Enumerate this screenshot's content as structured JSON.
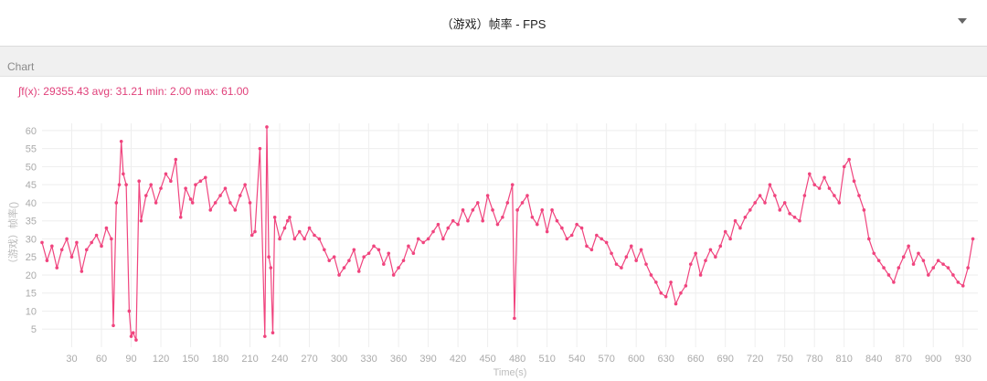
{
  "header": {
    "title": "（游戏）帧率 - FPS",
    "dropdown_icon": "chevron-down-icon"
  },
  "section": {
    "label": "Chart"
  },
  "stats": {
    "text": "∫f(x): 29355.43 avg: 31.21 min: 2.00 max: 61.00"
  },
  "colors": {
    "series": "#f0447e",
    "grid": "#eeeeee",
    "stats": "#e0407a"
  },
  "chart_data": {
    "type": "line",
    "xlabel": "Time(s)",
    "ylabel": "（游戏）帧率()",
    "xlim": [
      0,
      945
    ],
    "ylim": [
      0,
      62
    ],
    "x_ticks": [
      30,
      60,
      90,
      120,
      150,
      180,
      210,
      240,
      270,
      300,
      330,
      360,
      390,
      420,
      450,
      480,
      510,
      540,
      570,
      600,
      630,
      660,
      690,
      720,
      750,
      780,
      810,
      840,
      870,
      900,
      930
    ],
    "y_ticks": [
      5,
      10,
      15,
      20,
      25,
      30,
      35,
      40,
      45,
      50,
      55,
      60
    ],
    "grid": true,
    "series": [
      {
        "x": [
          0,
          5,
          10,
          15,
          20,
          25,
          30,
          35,
          40,
          45,
          50,
          55,
          60,
          65,
          70,
          72,
          75,
          78,
          80,
          82,
          85,
          88,
          90,
          92,
          95,
          98,
          100,
          105,
          110,
          115,
          120,
          125,
          130,
          135,
          140,
          145,
          150,
          152,
          155,
          160,
          165,
          170,
          175,
          180,
          185,
          190,
          195,
          200,
          205,
          210,
          212,
          215,
          220,
          225,
          227,
          229,
          231,
          233,
          235,
          240,
          245,
          248,
          250,
          255,
          260,
          265,
          270,
          275,
          280,
          285,
          290,
          295,
          300,
          305,
          310,
          315,
          320,
          325,
          330,
          335,
          340,
          345,
          350,
          355,
          360,
          365,
          370,
          375,
          380,
          385,
          390,
          395,
          400,
          405,
          410,
          415,
          420,
          425,
          430,
          435,
          440,
          445,
          450,
          455,
          460,
          465,
          470,
          475,
          477,
          480,
          485,
          490,
          495,
          500,
          505,
          510,
          515,
          520,
          525,
          530,
          535,
          540,
          545,
          550,
          555,
          560,
          565,
          570,
          575,
          580,
          585,
          590,
          595,
          600,
          605,
          610,
          615,
          620,
          625,
          630,
          635,
          640,
          645,
          650,
          655,
          660,
          665,
          670,
          675,
          680,
          685,
          690,
          695,
          700,
          705,
          710,
          715,
          720,
          725,
          730,
          735,
          740,
          745,
          750,
          755,
          760,
          765,
          770,
          775,
          780,
          785,
          790,
          795,
          800,
          805,
          810,
          815,
          820,
          825,
          830,
          835,
          840,
          845,
          850,
          855,
          860,
          865,
          870,
          875,
          880,
          885,
          890,
          895,
          900,
          905,
          910,
          915,
          920,
          925,
          930,
          935,
          940
        ],
        "y": [
          29,
          24,
          28,
          22,
          27,
          30,
          25,
          29,
          21,
          27,
          29,
          31,
          28,
          33,
          30,
          6,
          40,
          45,
          57,
          48,
          45,
          10,
          3,
          4,
          2,
          46,
          35,
          42,
          45,
          40,
          44,
          48,
          46,
          52,
          36,
          44,
          41,
          40,
          45,
          46,
          47,
          38,
          40,
          42,
          44,
          40,
          38,
          42,
          45,
          40,
          31,
          32,
          55,
          3,
          61,
          25,
          22,
          4,
          36,
          30,
          33,
          35,
          36,
          30,
          32,
          30,
          33,
          31,
          30,
          27,
          24,
          25,
          20,
          22,
          24,
          27,
          21,
          25,
          26,
          28,
          27,
          23,
          26,
          20,
          22,
          24,
          28,
          26,
          30,
          29,
          30,
          32,
          34,
          30,
          33,
          35,
          34,
          38,
          35,
          38,
          40,
          35,
          42,
          38,
          34,
          36,
          40,
          45,
          8,
          38,
          40,
          42,
          36,
          34,
          38,
          32,
          38,
          35,
          33,
          30,
          31,
          34,
          33,
          28,
          27,
          31,
          30,
          29,
          26,
          23,
          22,
          25,
          28,
          24,
          27,
          23,
          20,
          18,
          15,
          14,
          18,
          12,
          15,
          17,
          23,
          26,
          20,
          24,
          27,
          25,
          28,
          32,
          30,
          35,
          33,
          36,
          38,
          40,
          42,
          40,
          45,
          42,
          38,
          40,
          37,
          36,
          35,
          42,
          48,
          45,
          44,
          47,
          44,
          42,
          40,
          50,
          52,
          46,
          42,
          38,
          30,
          26,
          24,
          22,
          20,
          18,
          22,
          25,
          28,
          23,
          26,
          24,
          20,
          22,
          24,
          23,
          22,
          20,
          18,
          17,
          22,
          30
        ]
      }
    ]
  }
}
